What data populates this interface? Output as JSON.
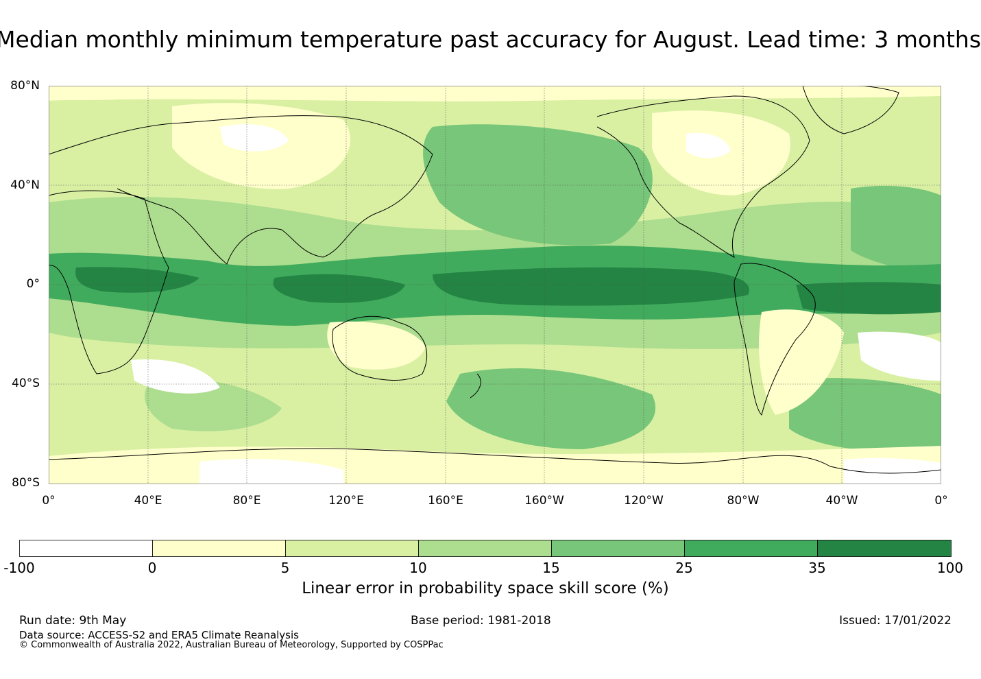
{
  "title": "Median monthly minimum temperature past accuracy for August. Lead time: 3 months",
  "map": {
    "lat_labels": [
      "80°N",
      "40°N",
      "0°",
      "40°S",
      "80°S"
    ],
    "lon_labels": [
      "0°",
      "40°E",
      "80°E",
      "120°E",
      "160°E",
      "160°W",
      "120°W",
      "80°W",
      "40°W",
      "0°"
    ],
    "lat_range": [
      -80,
      80
    ],
    "lon_range": [
      0,
      360
    ],
    "gridlines": "dotted"
  },
  "colorbar": {
    "ticks": [
      "-100",
      "0",
      "5",
      "10",
      "15",
      "25",
      "35",
      "100"
    ],
    "colors": [
      "#ffffff",
      "#ffffcc",
      "#d9f0a3",
      "#addd8e",
      "#78c679",
      "#41ab5d",
      "#238443"
    ],
    "label": "Linear error in probability space skill score (%)"
  },
  "footer": {
    "run_date": "Run date: 9th May",
    "base_period": "Base period: 1981-2018",
    "issued": "Issued: 17/01/2022",
    "data_source": "Data source: ACCESS-S2 and ERA5 Climate Reanalysis",
    "copyright": "© Commonwealth of Australia 2022, Australian Bureau of Meteorology, Supported by COSPPac"
  }
}
